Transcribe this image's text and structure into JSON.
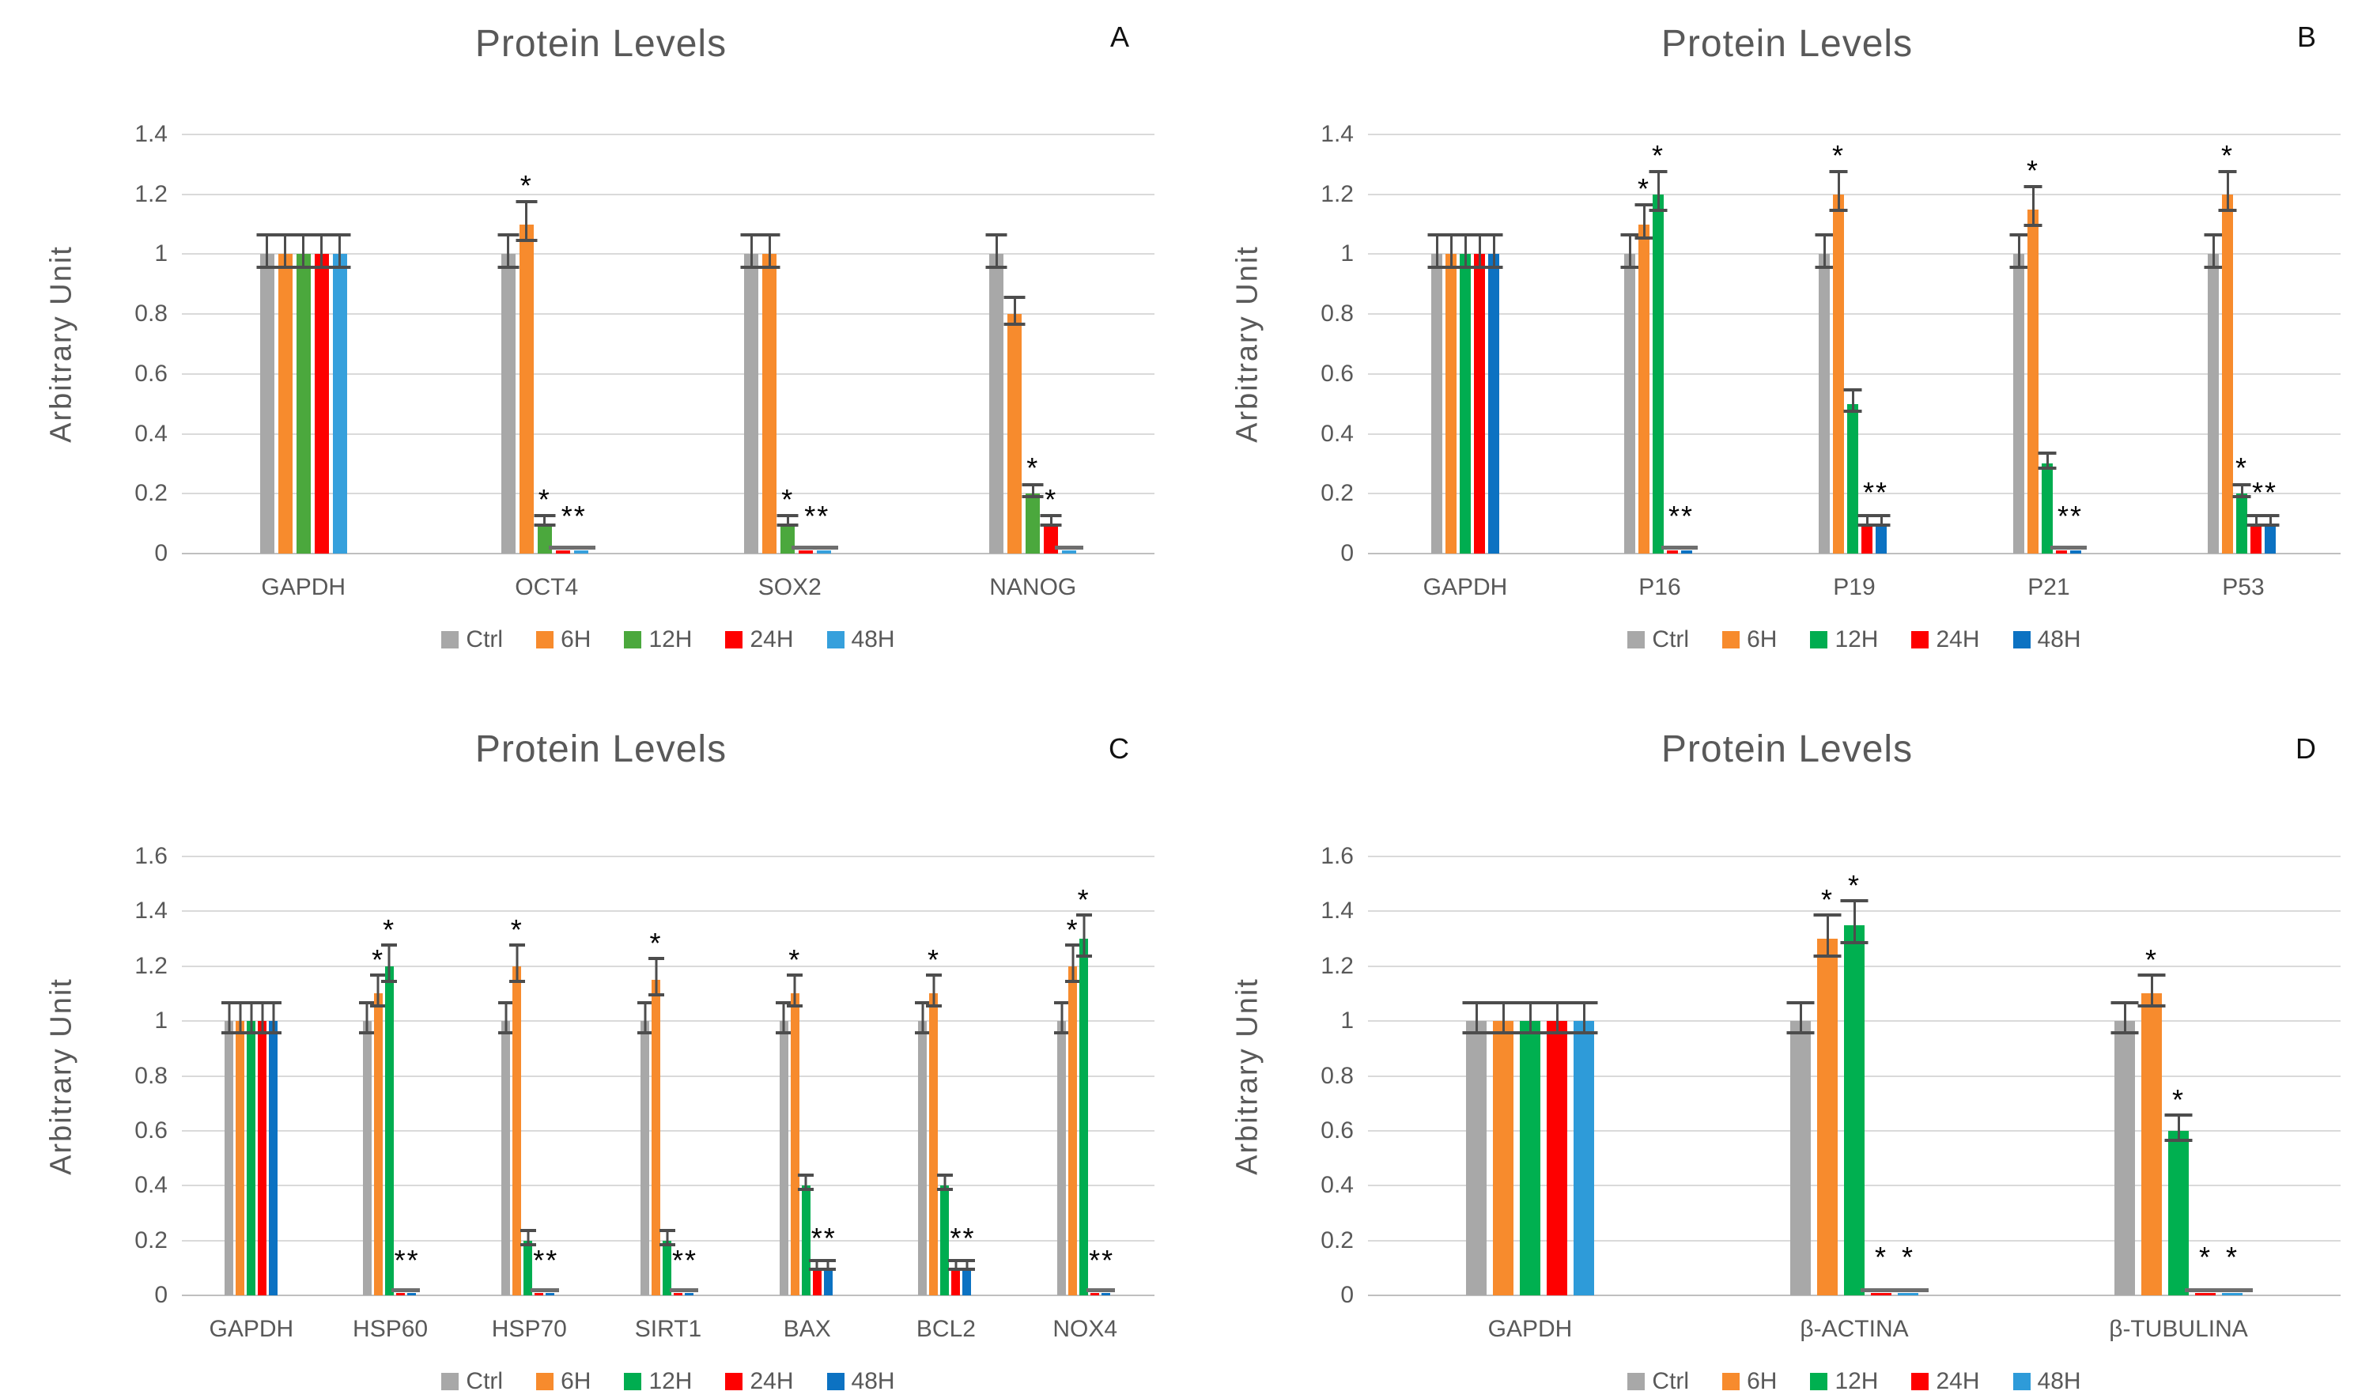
{
  "chart_data": [
    {
      "type": "bar",
      "letter": "A",
      "title": "Protein Levels",
      "ylabel": "Arbitrary Unit",
      "ylim": [
        0,
        1.4
      ],
      "ymax": 1.4,
      "grid": true,
      "legend_position": "bottom",
      "yticks": [
        "0",
        "0.2",
        "0.4",
        "0.6",
        "0.8",
        "1",
        "1.2",
        "1.4"
      ],
      "categories": [
        "GAPDH",
        "OCT4",
        "SOX2",
        "NANOG"
      ],
      "series": [
        {
          "name": "Ctrl",
          "color": "#A8A8A8",
          "values": [
            1,
            1,
            1,
            1
          ],
          "errors": [
            0.05,
            0.05,
            0.05,
            0.05
          ],
          "stars": [
            "",
            "",
            "",
            ""
          ]
        },
        {
          "name": "6H",
          "color": "#F78B2D",
          "values": [
            1,
            1.1,
            1,
            0.8
          ],
          "errors": [
            0.05,
            0.06,
            0.05,
            0.04
          ],
          "stars": [
            "",
            "*",
            "",
            ""
          ]
        },
        {
          "name": "12H",
          "color": "#4BA83D",
          "values": [
            1,
            0.1,
            0.1,
            0.2
          ],
          "errors": [
            0.05,
            0.01,
            0.01,
            0.015
          ],
          "stars": [
            "",
            "*",
            "*",
            "*"
          ]
        },
        {
          "name": "24H",
          "color": "#FE0000",
          "values": [
            1,
            0.01,
            0.01,
            0.1
          ],
          "errors": [
            0.05,
            0,
            0,
            0.01
          ],
          "stars": [
            "",
            "",
            "",
            "*"
          ]
        },
        {
          "name": "48H",
          "color": "#36A0DC",
          "values": [
            1,
            0.01,
            0.01,
            0.01
          ],
          "errors": [
            0.05,
            0,
            0,
            0
          ],
          "stars": [
            "",
            "",
            "",
            ""
          ]
        }
      ],
      "pair_stars": [
        "",
        "**",
        "**",
        ""
      ]
    },
    {
      "type": "bar",
      "letter": "B",
      "title": "Protein Levels",
      "ylabel": "Arbitrary Unit",
      "ylim": [
        0,
        1.4
      ],
      "ymax": 1.4,
      "grid": true,
      "legend_position": "bottom",
      "yticks": [
        "0",
        "0.2",
        "0.4",
        "0.6",
        "0.8",
        "1",
        "1.2",
        "1.4"
      ],
      "categories": [
        "GAPDH",
        "P16",
        "P19",
        "P21",
        "P53"
      ],
      "series": [
        {
          "name": "Ctrl",
          "color": "#A8A8A8",
          "values": [
            1,
            1,
            1,
            1,
            1
          ],
          "errors": [
            0.05,
            0.05,
            0.05,
            0.05,
            0.05
          ],
          "stars": [
            "",
            "",
            "",
            "",
            ""
          ]
        },
        {
          "name": "6H",
          "color": "#F78B2D",
          "values": [
            1,
            1.1,
            1.2,
            1.15,
            1.2
          ],
          "errors": [
            0.05,
            0.05,
            0.06,
            0.06,
            0.06
          ],
          "stars": [
            "",
            "*",
            "*",
            "*",
            "*"
          ]
        },
        {
          "name": "12H",
          "color": "#00AD50",
          "values": [
            1,
            1.2,
            0.5,
            0.3,
            0.2
          ],
          "errors": [
            0.05,
            0.06,
            0.03,
            0.02,
            0.015
          ],
          "stars": [
            "",
            "*",
            "",
            "",
            "*"
          ]
        },
        {
          "name": "24H",
          "color": "#FE0000",
          "values": [
            1,
            0.01,
            0.1,
            0.01,
            0.1
          ],
          "errors": [
            0.05,
            0,
            0.01,
            0,
            0.01
          ],
          "stars": [
            "",
            "",
            "",
            "",
            ""
          ]
        },
        {
          "name": "48H",
          "color": "#0C72C2",
          "values": [
            1,
            0.01,
            0.1,
            0.01,
            0.1
          ],
          "errors": [
            0.05,
            0,
            0.01,
            0,
            0.01
          ],
          "stars": [
            "",
            "",
            "",
            "",
            ""
          ]
        }
      ],
      "pair_stars": [
        "",
        "**",
        "**",
        "**",
        "**"
      ]
    },
    {
      "type": "bar",
      "letter": "C",
      "title": "Protein Levels",
      "ylabel": "Arbitrary Unit",
      "ylim": [
        0,
        1.6
      ],
      "ymax": 1.6,
      "grid": true,
      "legend_position": "bottom",
      "yticks": [
        "0",
        "0.2",
        "0.4",
        "0.6",
        "0.8",
        "1",
        "1.2",
        "1.4",
        "1.6"
      ],
      "categories": [
        "GAPDH",
        "HSP60",
        "HSP70",
        "SIRT1",
        "BAX",
        "BCL2",
        "NOX4"
      ],
      "series": [
        {
          "name": "Ctrl",
          "color": "#A8A8A8",
          "values": [
            1,
            1,
            1,
            1,
            1,
            1,
            1
          ],
          "errors": [
            0.05,
            0.05,
            0.05,
            0.05,
            0.05,
            0.05,
            0.05
          ],
          "stars": [
            "",
            "",
            "",
            "",
            "",
            "",
            ""
          ]
        },
        {
          "name": "6H",
          "color": "#F78B2D",
          "values": [
            1,
            1.1,
            1.2,
            1.15,
            1.1,
            1.1,
            1.2
          ],
          "errors": [
            0.05,
            0.05,
            0.06,
            0.06,
            0.05,
            0.05,
            0.06
          ],
          "stars": [
            "",
            "*",
            "*",
            "*",
            "*",
            "*",
            "*"
          ]
        },
        {
          "name": "12H",
          "color": "#00AD50",
          "values": [
            1,
            1.2,
            0.2,
            0.2,
            0.4,
            0.4,
            1.3
          ],
          "errors": [
            0.05,
            0.06,
            0.02,
            0.02,
            0.02,
            0.02,
            0.07
          ],
          "stars": [
            "",
            "*",
            "",
            "",
            "",
            "",
            "*"
          ]
        },
        {
          "name": "24H",
          "color": "#FE0000",
          "values": [
            1,
            0.01,
            0.01,
            0.01,
            0.1,
            0.1,
            0.01
          ],
          "errors": [
            0.05,
            0,
            0,
            0,
            0.01,
            0.01,
            0
          ],
          "stars": [
            "",
            "",
            "",
            "",
            "",
            "",
            ""
          ]
        },
        {
          "name": "48H",
          "color": "#0C72C2",
          "values": [
            1,
            0.01,
            0.01,
            0.01,
            0.1,
            0.1,
            0.01
          ],
          "errors": [
            0.05,
            0,
            0,
            0,
            0.01,
            0.01,
            0
          ],
          "stars": [
            "",
            "",
            "",
            "",
            "",
            "",
            ""
          ]
        }
      ],
      "pair_stars": [
        "",
        "**",
        "**",
        "**",
        "**",
        "**",
        "**"
      ]
    },
    {
      "type": "bar",
      "letter": "D",
      "title": "Protein Levels",
      "ylabel": "Arbitrary Unit",
      "ylim": [
        0,
        1.6
      ],
      "ymax": 1.6,
      "grid": true,
      "legend_position": "bottom",
      "yticks": [
        "0",
        "0.2",
        "0.4",
        "0.6",
        "0.8",
        "1",
        "1.2",
        "1.4",
        "1.6"
      ],
      "categories": [
        "GAPDH",
        "β-ACTINA",
        "β-TUBULINA"
      ],
      "series": [
        {
          "name": "Ctrl",
          "color": "#A8A8A8",
          "values": [
            1,
            1,
            1
          ],
          "errors": [
            0.05,
            0.05,
            0.05
          ],
          "stars": [
            "",
            "",
            ""
          ]
        },
        {
          "name": "6H",
          "color": "#F78B2D",
          "values": [
            1,
            1.3,
            1.1
          ],
          "errors": [
            0.05,
            0.07,
            0.05
          ],
          "stars": [
            "",
            "*",
            "*"
          ]
        },
        {
          "name": "12H",
          "color": "#00B050",
          "values": [
            1,
            1.35,
            0.6
          ],
          "errors": [
            0.05,
            0.07,
            0.04
          ],
          "stars": [
            "",
            "*",
            "*"
          ]
        },
        {
          "name": "24H",
          "color": "#FE0000",
          "values": [
            1,
            0.01,
            0.01
          ],
          "errors": [
            0.05,
            0,
            0
          ],
          "stars": [
            "",
            "*",
            "*"
          ]
        },
        {
          "name": "48H",
          "color": "#2E9BD9",
          "values": [
            1,
            0.01,
            0.01
          ],
          "errors": [
            0.05,
            0,
            0
          ],
          "stars": [
            "",
            "*",
            "*"
          ]
        }
      ],
      "pair_stars": [
        "",
        "",
        ""
      ]
    }
  ]
}
